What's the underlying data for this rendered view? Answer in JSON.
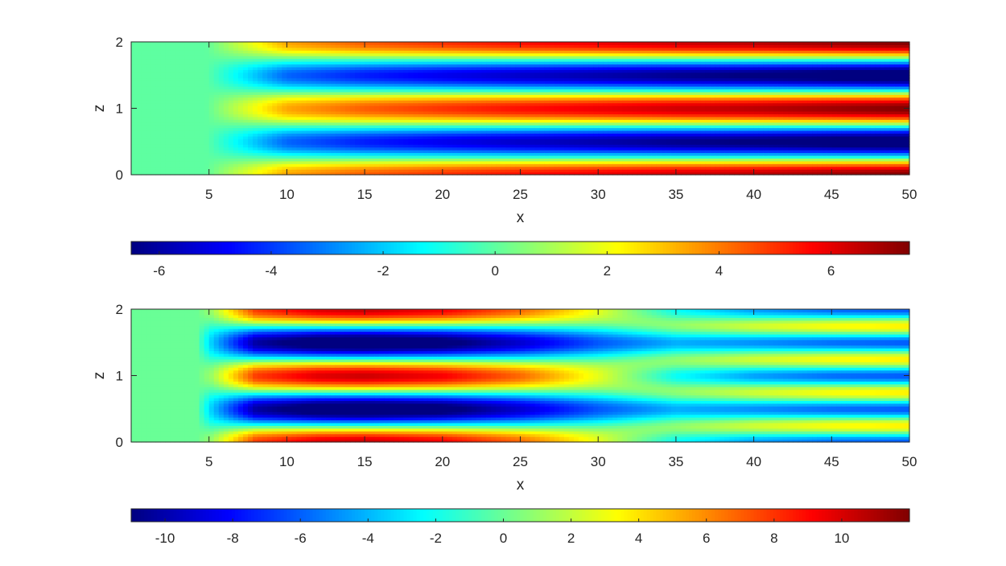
{
  "chart_data": [
    {
      "type": "heatmap",
      "title": "",
      "xlabel": "x",
      "ylabel": "z",
      "xlim": [
        0,
        50
      ],
      "ylim": [
        0,
        2
      ],
      "xticks": [
        5,
        10,
        15,
        20,
        25,
        30,
        35,
        40,
        45,
        50
      ],
      "yticks": [
        0,
        1,
        2
      ],
      "colormap": "jet",
      "clim": [
        -6.5,
        7.4
      ],
      "colorbar": {
        "location": "below",
        "ticks": [
          -6,
          -4,
          -2,
          0,
          2,
          4,
          6
        ]
      },
      "field": {
        "description_values": "z-profile cos(2*pi*z) modes",
        "flat_region_x": [
          0,
          4.8
        ],
        "flat_value": 0,
        "z_period": 1,
        "amplitude_at_x": {
          "x": [
            4.8,
            10,
            15,
            20,
            25,
            30,
            35,
            40,
            45,
            50
          ],
          "a": [
            0,
            3.4,
            4.4,
            5.0,
            5.5,
            5.9,
            6.3,
            6.6,
            7.0,
            7.4
          ]
        }
      }
    },
    {
      "type": "heatmap",
      "title": "",
      "xlabel": "x",
      "ylabel": "z",
      "xlim": [
        0,
        50
      ],
      "ylim": [
        0,
        2
      ],
      "xticks": [
        5,
        10,
        15,
        20,
        25,
        30,
        35,
        40,
        45,
        50
      ],
      "yticks": [
        0,
        1,
        2
      ],
      "colormap": "jet",
      "clim": [
        -11,
        12
      ],
      "colorbar": {
        "location": "below",
        "ticks": [
          -10,
          -8,
          -6,
          -4,
          -2,
          0,
          2,
          4,
          6,
          8,
          10
        ]
      },
      "field": {
        "description_values": "z-profile cos(2*pi*z) decaying mode plus cos(4*pi*z) growing mode",
        "flat_region_x": [
          0,
          4.2
        ],
        "flat_value": 0,
        "background_value": -1.2,
        "mode1_amplitude_at_x": {
          "x": [
            4.2,
            8,
            12,
            15,
            20,
            25,
            30,
            35,
            40,
            45,
            50
          ],
          "a": [
            0,
            9.0,
            11.0,
            11.5,
            10.5,
            8.0,
            4.5,
            1.0,
            0.2,
            0.0,
            0.0
          ]
        },
        "mode2_amplitude_at_x": {
          "x": [
            4.2,
            25,
            30,
            35,
            40,
            45,
            50
          ],
          "a": [
            0,
            0,
            0.5,
            2.0,
            3.5,
            4.5,
            5.0
          ]
        }
      }
    }
  ]
}
